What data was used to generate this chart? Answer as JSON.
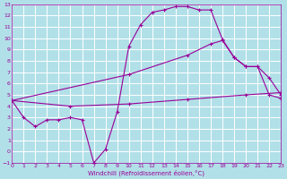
{
  "background_color": "#b2e0e8",
  "grid_color": "#ffffff",
  "line_color": "#990099",
  "xlabel": "Windchill (Refroidissement éolien,°C)",
  "xlim": [
    0,
    23
  ],
  "ylim": [
    -1,
    13
  ],
  "xticks": [
    0,
    1,
    2,
    3,
    4,
    5,
    6,
    7,
    8,
    9,
    10,
    11,
    12,
    13,
    14,
    15,
    16,
    17,
    18,
    19,
    20,
    21,
    22,
    23
  ],
  "yticks": [
    -1,
    0,
    1,
    2,
    3,
    4,
    5,
    6,
    7,
    8,
    9,
    10,
    11,
    12,
    13
  ],
  "line1_x": [
    0,
    1,
    2,
    3,
    4,
    5,
    6,
    7,
    8,
    9,
    10,
    11,
    12,
    13,
    14,
    15,
    16,
    17,
    18,
    19,
    20,
    21,
    22,
    23
  ],
  "line1_y": [
    4.5,
    3.0,
    2.2,
    2.8,
    2.8,
    3.0,
    2.8,
    -1.0,
    0.2,
    3.5,
    9.3,
    11.2,
    12.3,
    12.5,
    12.8,
    12.8,
    12.5,
    12.5,
    9.9,
    8.3,
    7.5,
    7.5,
    5.0,
    4.7
  ],
  "line2_x": [
    0,
    10,
    15,
    17,
    18,
    19,
    20,
    21,
    22,
    23
  ],
  "line2_y": [
    4.5,
    6.8,
    8.5,
    9.5,
    9.8,
    8.3,
    7.5,
    7.5,
    6.5,
    5.0
  ],
  "line3_x": [
    0,
    5,
    10,
    15,
    20,
    23
  ],
  "line3_y": [
    4.5,
    4.0,
    4.2,
    4.6,
    5.0,
    5.2
  ]
}
